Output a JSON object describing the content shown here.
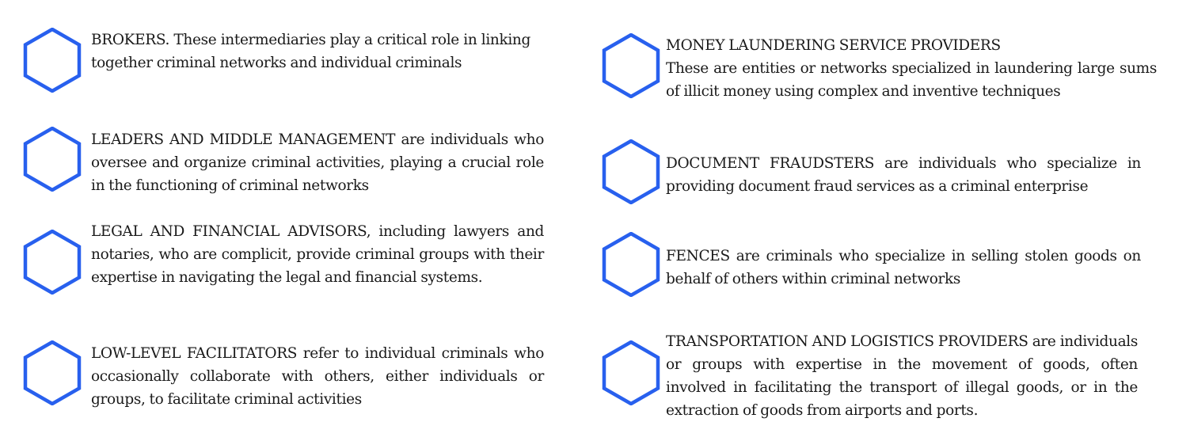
{
  "colors": {
    "hexagon_stroke": "#2860ee",
    "text": "#1a1a1a",
    "background": "#ffffff"
  },
  "left_column": [
    {
      "icon": "hexagon-outline",
      "text": "BROKERS. These intermediaries play a critical role in linking together criminal networks and individual criminals"
    },
    {
      "icon": "hexagon-outline",
      "text": "LEADERS AND MIDDLE MANAGEMENT are individuals who oversee and organize criminal activities, playing a crucial role in the functioning of criminal networks"
    },
    {
      "icon": "hexagon-outline",
      "text": "LEGAL AND FINANCIAL ADVISORS, including lawyers and notaries, who are complicit, provide criminal groups with their expertise in navigating the legal and financial systems."
    },
    {
      "icon": "hexagon-outline",
      "text": "LOW-LEVEL FACILITATORS refer to individual criminals who occasionally collaborate with others, either individuals or groups, to facilitate criminal activities"
    }
  ],
  "right_column": [
    {
      "icon": "hexagon-outline",
      "title": "MONEY LAUNDERING SERVICE PROVIDERS",
      "text": "These are entities or networks specialized in laundering large sums of illicit money using complex and inventive techniques"
    },
    {
      "icon": "hexagon-outline",
      "text": "DOCUMENT FRAUDSTERS are individuals who specialize in providing document fraud services as a criminal enterprise"
    },
    {
      "icon": "hexagon-outline",
      "text": "FENCES are criminals who specialize in selling stolen goods on behalf of others within criminal networks"
    },
    {
      "icon": "hexagon-outline",
      "text": "TRANSPORTATION AND LOGISTICS PROVIDERS are individuals or groups with expertise in the movement of goods, often involved in facilitating the transport of illegal goods, or in the extraction of goods from airports and ports."
    }
  ]
}
